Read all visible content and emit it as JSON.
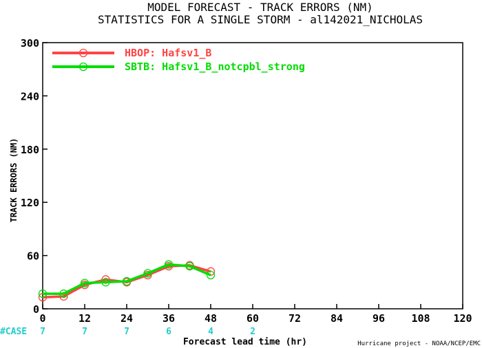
{
  "chart_data": {
    "type": "line",
    "title": "MODEL FORECAST - TRACK ERRORS (NM)",
    "subtitle": "STATISTICS FOR A SINGLE STORM - al142021_NICHOLAS",
    "xlabel": "Forecast lead time (hr)",
    "ylabel": "TRACK ERRORS (NM)",
    "xlim": [
      0,
      120
    ],
    "ylim": [
      0,
      300
    ],
    "x_ticks": [
      0,
      12,
      24,
      36,
      48,
      60,
      72,
      84,
      96,
      108,
      120
    ],
    "y_ticks": [
      0,
      60,
      120,
      180,
      240,
      300
    ],
    "x_tick_labels": [
      "0",
      "12",
      "24",
      "36",
      "48",
      "60",
      "72",
      "84",
      "96",
      "108",
      "120"
    ],
    "y_tick_labels": [
      "0",
      "60",
      "120",
      "180",
      "240",
      "300"
    ],
    "grid": false,
    "legend_position": "top-left",
    "series": [
      {
        "name": "HBOP: Hafsv1_B",
        "color": "#ff4444",
        "x": [
          0,
          6,
          12,
          18,
          24,
          30,
          36,
          42,
          48
        ],
        "y": [
          13,
          14,
          27,
          33,
          30,
          38,
          48,
          49,
          42
        ]
      },
      {
        "name": "SBTB: Hafsv1_B_notcpbl_strong",
        "color": "#00dd00",
        "x": [
          0,
          6,
          12,
          18,
          24,
          30,
          36,
          42,
          48
        ],
        "y": [
          17,
          17,
          29,
          30,
          31,
          40,
          50,
          48,
          38
        ]
      }
    ],
    "case_label": "#CASE",
    "case_color": "#22cccc",
    "case_counts": [
      {
        "x": 0,
        "n": "7"
      },
      {
        "x": 12,
        "n": "7"
      },
      {
        "x": 24,
        "n": "7"
      },
      {
        "x": 36,
        "n": "6"
      },
      {
        "x": 48,
        "n": "4"
      },
      {
        "x": 60,
        "n": "2"
      }
    ],
    "credit": "Hurricane project - NOAA/NCEP/EMC"
  }
}
